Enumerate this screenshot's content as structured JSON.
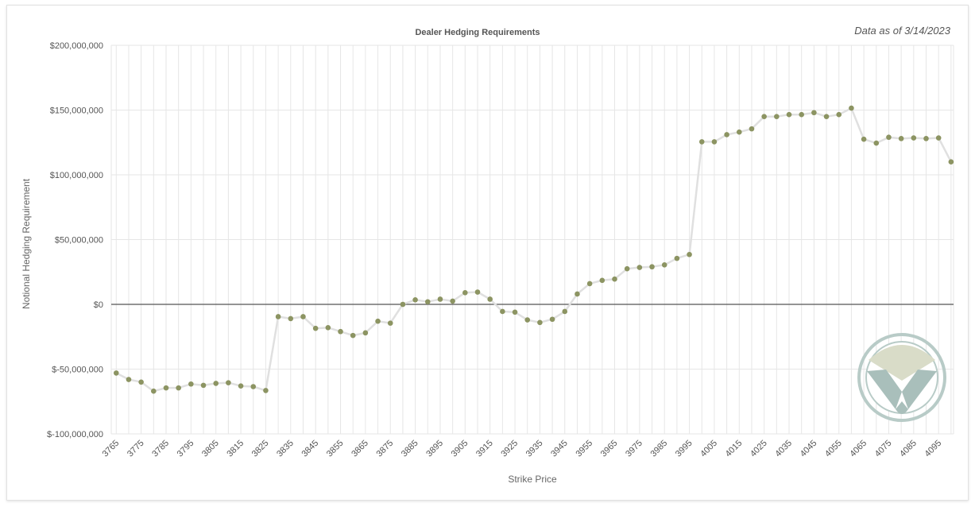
{
  "as_of": "Data as of 3/14/2023",
  "colors": {
    "line": "#e0e0e0",
    "point": "#8c9462",
    "grid": "#e6e6e6",
    "zero": "#555555",
    "logo_ring": "#b8cbc7",
    "logo_top": "#d9dcc8",
    "logo_bottom": "#a9bfbb"
  },
  "logo_icon": "v-shield-logo-icon",
  "chart_data": {
    "type": "line",
    "title": "Dealer Hedging Requirements",
    "xlabel": "Strike Price",
    "ylabel": "Notional Hedging Requirement",
    "ylim": [
      -100000000,
      200000000
    ],
    "yticks": [
      -100000000,
      -50000000,
      0,
      50000000,
      100000000,
      150000000,
      200000000
    ],
    "ytick_labels": [
      "$-100,000,000",
      "$-50,000,000",
      "$0",
      "$50,000,000",
      "$100,000,000",
      "$150,000,000",
      "$200,000,000"
    ],
    "xtick_labels": [
      "3765",
      "3775",
      "3785",
      "3795",
      "3805",
      "3815",
      "3825",
      "3835",
      "3845",
      "3855",
      "3865",
      "3875",
      "3885",
      "3895",
      "3905",
      "3915",
      "3925",
      "3935",
      "3945",
      "3955",
      "3965",
      "3975",
      "3985",
      "3995",
      "4005",
      "4015",
      "4025",
      "4035",
      "4045",
      "4055",
      "4065",
      "4075",
      "4085",
      "4095"
    ],
    "grid": true,
    "legend": "none",
    "x": [
      3765,
      3770,
      3775,
      3780,
      3785,
      3790,
      3795,
      3800,
      3805,
      3810,
      3815,
      3820,
      3825,
      3830,
      3835,
      3840,
      3845,
      3850,
      3855,
      3860,
      3865,
      3870,
      3875,
      3880,
      3885,
      3890,
      3895,
      3900,
      3905,
      3910,
      3915,
      3920,
      3925,
      3930,
      3935,
      3940,
      3945,
      3950,
      3955,
      3960,
      3965,
      3970,
      3975,
      3980,
      3985,
      3990,
      3995,
      4000,
      4005,
      4010,
      4015,
      4020,
      4025,
      4030,
      4035,
      4040,
      4045,
      4050,
      4055,
      4060,
      4065,
      4070,
      4075,
      4080,
      4085,
      4090,
      4095,
      4100
    ],
    "series": [
      {
        "values": [
          -53000000,
          -58000000,
          -60000000,
          -67000000,
          -64500000,
          -64500000,
          -61500000,
          -62500000,
          -61000000,
          -60500000,
          -63000000,
          -63500000,
          -66500000,
          -9500000,
          -11000000,
          -9500000,
          -18500000,
          -18000000,
          -21000000,
          -24000000,
          -22000000,
          -13000000,
          -14500000,
          0,
          3500000,
          2000000,
          4000000,
          2500000,
          9000000,
          9500000,
          4000000,
          -5500000,
          -6000000,
          -12000000,
          -14000000,
          -11500000,
          -5500000,
          8000000,
          16000000,
          18500000,
          19500000,
          27500000,
          28500000,
          29000000,
          30500000,
          35500000,
          38500000,
          125500000,
          125500000,
          131000000,
          133000000,
          135500000,
          145000000,
          145000000,
          146500000,
          146500000,
          148000000,
          145000000,
          146500000,
          151500000,
          127500000,
          124500000,
          129000000,
          128000000,
          128500000,
          128000000,
          128500000,
          110000000
        ]
      }
    ]
  }
}
